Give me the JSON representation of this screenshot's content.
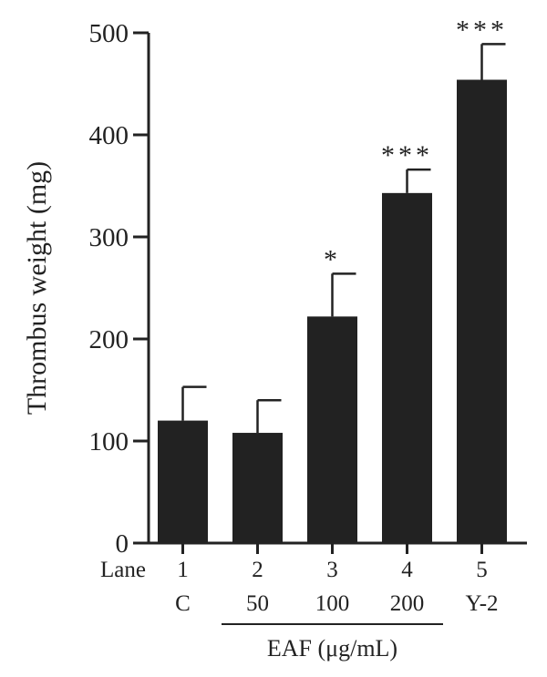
{
  "chart_data": {
    "type": "bar",
    "title": "",
    "ylabel": "Thrombus weight (mg)",
    "ylim": [
      0,
      500
    ],
    "yticks": [
      0,
      100,
      200,
      300,
      400,
      500
    ],
    "row_labels": {
      "lane": "Lane"
    },
    "categories": [
      "1",
      "2",
      "3",
      "4",
      "5"
    ],
    "sub_labels": [
      "C",
      "50",
      "100",
      "200",
      "Y-2"
    ],
    "group_label": {
      "text": "EAF (μg/mL)",
      "from_index": 1,
      "to_index": 3
    },
    "values": [
      120,
      108,
      222,
      343,
      454
    ],
    "errors": [
      33,
      32,
      42,
      23,
      35
    ],
    "significance": [
      "",
      "",
      "*",
      "***",
      "***"
    ],
    "bar_color": "#222222"
  }
}
